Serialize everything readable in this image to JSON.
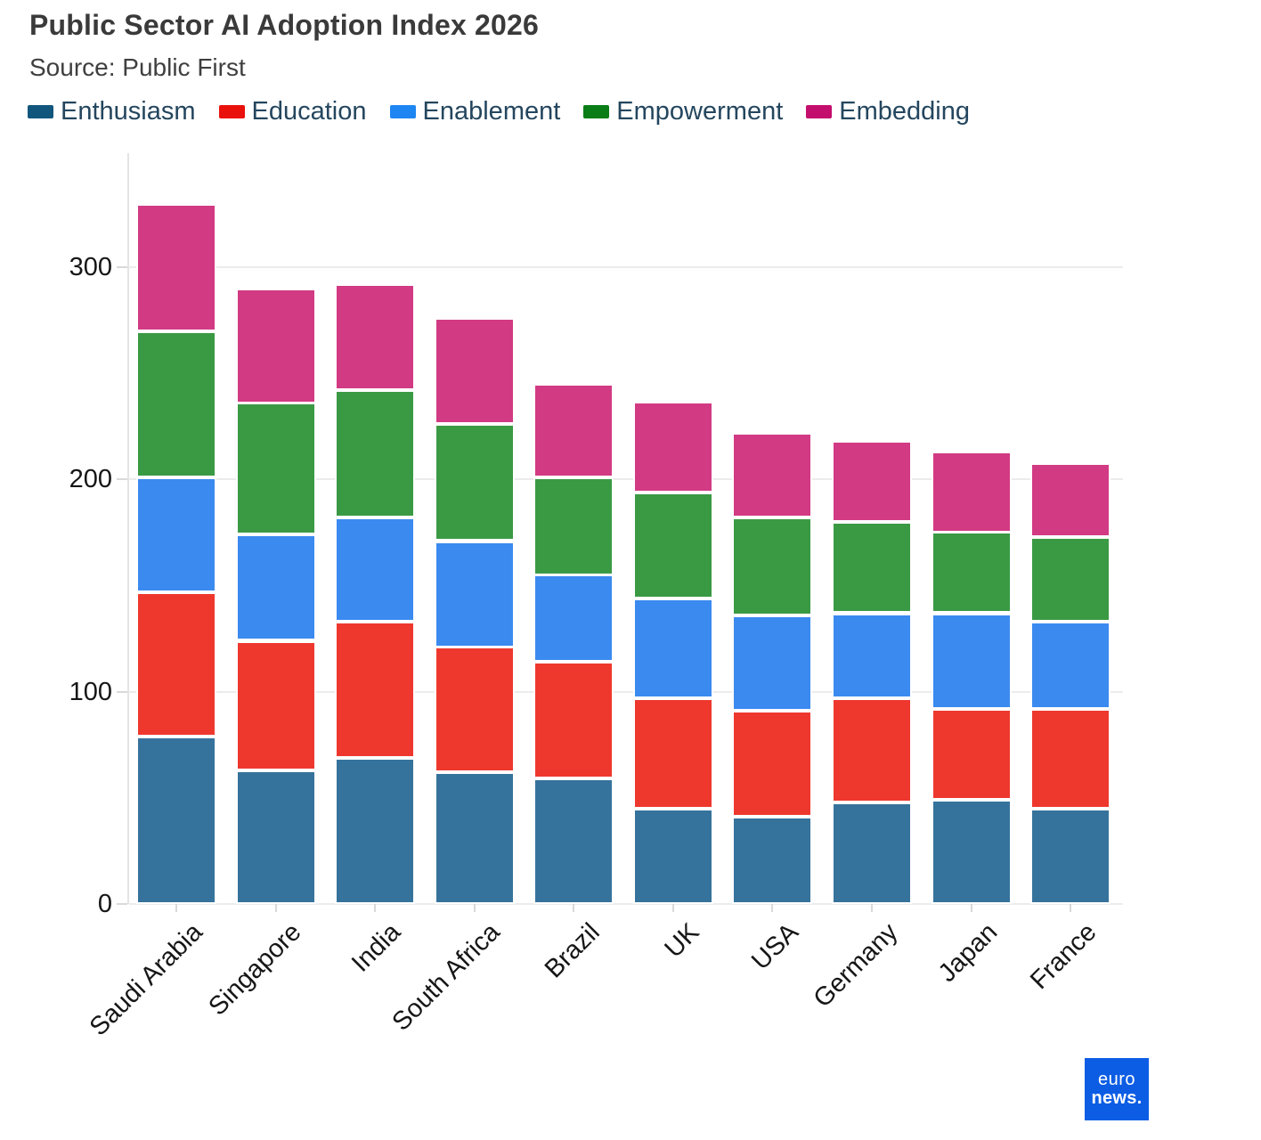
{
  "title": "Public Sector AI Adoption Index 2026",
  "source": "Source: Public First",
  "branding": {
    "line1": "euro",
    "line2": "news.",
    "bg_color": "#0c5de4"
  },
  "chart_data": {
    "type": "bar",
    "stacked": true,
    "title": "Public Sector AI Adoption Index 2026",
    "xlabel": "",
    "ylabel": "",
    "yticks": [
      0,
      100,
      200,
      300
    ],
    "ylim": [
      0,
      353
    ],
    "grid": true,
    "legend_position": "top",
    "categories": [
      "Saudi Arabia",
      "Singapore",
      "India",
      "South Africa",
      "Brazil",
      "UK",
      "USA",
      "Germany",
      "Japan",
      "France"
    ],
    "series": [
      {
        "name": "Enthusiasm",
        "legend_color": "#11567d",
        "bar_color": "#36739c",
        "values": [
          79,
          63,
          69,
          62,
          59,
          45,
          41,
          48,
          49,
          45
        ]
      },
      {
        "name": "Education",
        "legend_color": "#ea100c",
        "bar_color": "#ee382e",
        "values": [
          68,
          61,
          64,
          59,
          55,
          52,
          50,
          49,
          43,
          47
        ]
      },
      {
        "name": "Enablement",
        "legend_color": "#1e86f2",
        "bar_color": "#3b8af0",
        "values": [
          54,
          50,
          49,
          50,
          41,
          47,
          45,
          40,
          45,
          41
        ]
      },
      {
        "name": "Empowerment",
        "legend_color": "#0a7d16",
        "bar_color": "#3a9a44",
        "values": [
          69,
          62,
          60,
          55,
          46,
          50,
          46,
          43,
          38,
          40
        ]
      },
      {
        "name": "Embedding",
        "legend_color": "#c40e6d",
        "bar_color": "#d23a83",
        "values": [
          60,
          54,
          50,
          50,
          44,
          43,
          40,
          38,
          38,
          35
        ]
      }
    ],
    "totals": [
      330,
      290,
      292,
      276,
      245,
      237,
      222,
      218,
      213,
      208
    ]
  }
}
